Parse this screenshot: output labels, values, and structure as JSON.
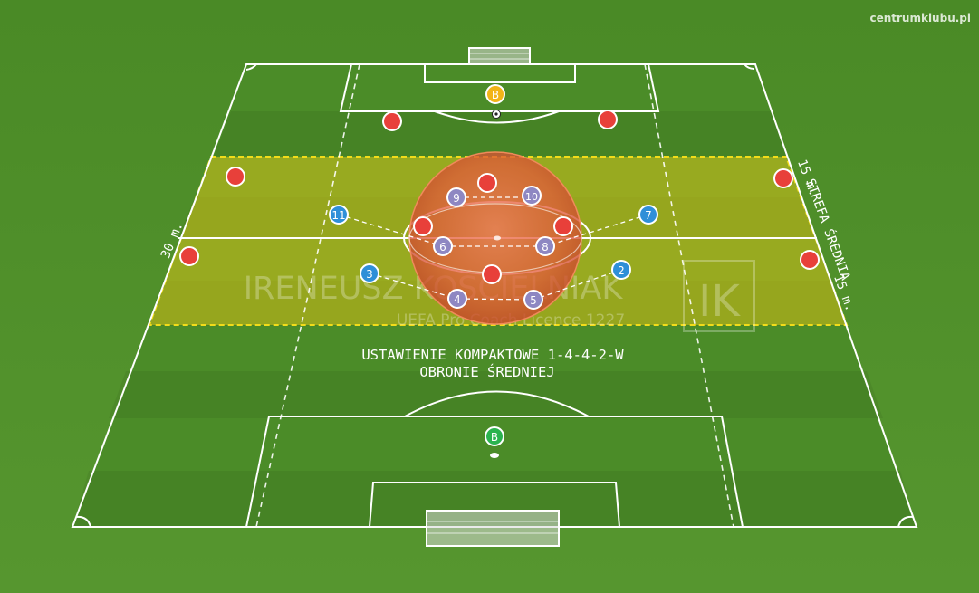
{
  "site": "centrumklubu.pl",
  "title_line1": "USTAWIENIE KOMPAKTOWE 1-4-4-2-W",
  "title_line2": "OBRONIE ŚREDNIEJ",
  "zone_label": "STREFA ŚREDNIA",
  "dim_left": "30 m.",
  "dim_right_top": "15 m.",
  "dim_right_bottom": "15 m.",
  "watermark": {
    "name": "IRENEUSZ KOŚCIELNIAK",
    "sub": "UEFA Pro Coach  Licence 1227",
    "logo": "IK"
  },
  "goalkeepers": [
    {
      "label": "B",
      "color": "#f2b418"
    },
    {
      "label": "B",
      "color": "#2bb34f"
    }
  ],
  "colors": {
    "grass": "#4f8f2a",
    "opponent": "#e8403a",
    "team_blue": "#2f8fd8",
    "team_purple": "#8e87c2",
    "zone": "#d9c21a"
  },
  "team_players": [
    {
      "label": "11",
      "kind": "blue"
    },
    {
      "label": "3",
      "kind": "blue"
    },
    {
      "label": "7",
      "kind": "blue"
    },
    {
      "label": "2",
      "kind": "blue"
    },
    {
      "label": "9",
      "kind": "purple"
    },
    {
      "label": "10",
      "kind": "purple"
    },
    {
      "label": "6",
      "kind": "purple"
    },
    {
      "label": "8",
      "kind": "purple"
    },
    {
      "label": "4",
      "kind": "purple"
    },
    {
      "label": "5",
      "kind": "purple"
    }
  ]
}
